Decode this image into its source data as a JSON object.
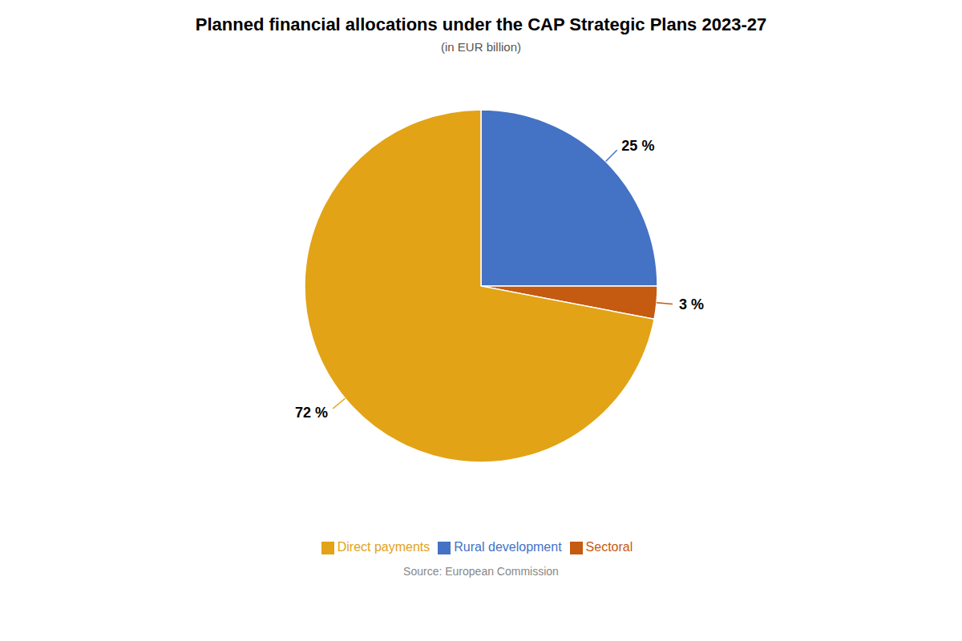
{
  "chart_data": {
    "type": "pie",
    "title": "Planned financial allocations under the CAP Strategic Plans 2023-27",
    "subtitle": "(in EUR billion)",
    "source": "Source: European Commission",
    "categories": [
      "Rural development",
      "Sectoral",
      "Direct payments"
    ],
    "values": [
      25,
      3,
      72
    ],
    "value_labels": [
      "25 %",
      "3 %",
      "72 %"
    ],
    "colors": [
      "#4472C4",
      "#C55A11",
      "#E2A316"
    ],
    "data_labels": true,
    "legend": "bottom"
  }
}
